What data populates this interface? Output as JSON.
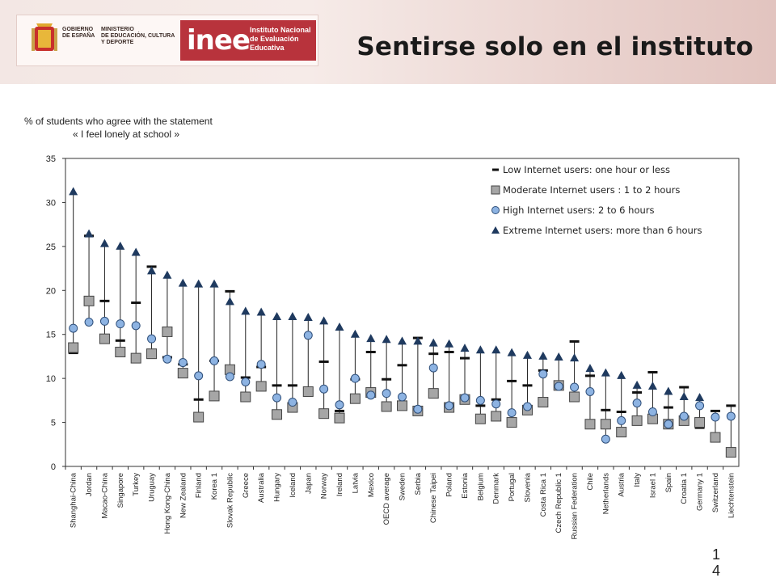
{
  "header": {
    "logo_text": "GOBIERNO DE ESPAÑA | MINISTERIO DE EDUCACIÓN, CULTURA Y DEPORTE | inee Instituto Nacional de Evaluación Educativa",
    "title": "Sentirse solo en el instituto"
  },
  "page_number": "14",
  "colors": {
    "low": "#111111",
    "moderate": "#a6a6a6",
    "high": "#8db3e2",
    "extreme": "#1f3a5f",
    "brand_red": "#b8333c"
  },
  "chart_data": {
    "type": "scatter",
    "subtitle_line1": "% of students who agree with the statement",
    "subtitle_line2": "« I feel lonely at school »",
    "ylim": [
      0,
      35
    ],
    "yticks": [
      0,
      5,
      10,
      15,
      20,
      25,
      30,
      35
    ],
    "grid": false,
    "legend_position": "top-right",
    "categories": [
      "Shanghai-China",
      "Jordan",
      "Macao-China",
      "Singapore",
      "Turkey",
      "Uruguay",
      "Hong Kong-China",
      "New Zealand",
      "Finland",
      "Korea 1",
      "Slovak Republic",
      "Greece",
      "Australia",
      "Hungary",
      "Iceland",
      "Japan",
      "Norway",
      "Ireland",
      "Latvia",
      "Mexico",
      "OECD average",
      "Sweden",
      "Serbia",
      "Chinese Taipei",
      "Poland",
      "Estonia",
      "Belgium",
      "Denmark",
      "Portugal",
      "Slovenia",
      "Costa Rica 1",
      "Czech Republic 1",
      "Russian Federation",
      "Chile",
      "Netherlands",
      "Austria",
      "Italy",
      "Israel 1",
      "Spain",
      "Croatia 1",
      "Germany 1",
      "Switzerland",
      "Liechtenstein"
    ],
    "series": [
      {
        "name": "Low Internet users: one hour or less",
        "marker": "dash",
        "values": [
          12.9,
          26.2,
          18.8,
          14.3,
          18.6,
          22.7,
          12.4,
          11.6,
          7.6,
          12.0,
          19.9,
          10.1,
          11.3,
          9.2,
          9.2,
          8.4,
          11.9,
          6.3,
          9.9,
          13.0,
          9.9,
          11.5,
          14.6,
          12.8,
          13.0,
          12.3,
          6.9,
          7.6,
          9.7,
          9.2,
          10.9,
          9.4,
          14.2,
          10.3,
          6.4,
          6.2,
          8.4,
          10.7,
          6.7,
          9.0,
          4.4,
          6.3,
          6.9
        ]
      },
      {
        "name": "Moderate Internet users : 1 to 2 hours",
        "marker": "square",
        "values": [
          13.5,
          18.8,
          14.5,
          13.0,
          12.3,
          12.8,
          15.3,
          10.6,
          5.6,
          8.0,
          11.0,
          7.9,
          9.1,
          5.9,
          6.7,
          8.5,
          6.0,
          5.5,
          7.7,
          8.4,
          6.8,
          6.9,
          6.3,
          8.3,
          6.7,
          7.6,
          5.4,
          5.7,
          5.0,
          6.4,
          7.3,
          9.2,
          7.9,
          4.8,
          4.8,
          3.9,
          5.2,
          5.4,
          4.8,
          5.2,
          5.0,
          3.3,
          1.6
        ]
      },
      {
        "name": "High Internet users: 2 to 6 hours",
        "marker": "circle",
        "values": [
          15.7,
          16.4,
          16.5,
          16.2,
          16.0,
          14.5,
          12.2,
          11.8,
          10.3,
          12.0,
          10.2,
          9.6,
          11.6,
          7.8,
          7.3,
          14.9,
          8.8,
          7.0,
          10.0,
          8.1,
          8.3,
          7.9,
          6.5,
          11.2,
          6.9,
          7.8,
          7.5,
          7.1,
          6.1,
          6.8,
          10.5,
          9.1,
          9.0,
          8.5,
          3.1,
          5.2,
          7.2,
          6.2,
          4.8,
          5.7,
          6.9,
          5.6,
          5.7
        ]
      },
      {
        "name": "Extreme Internet users: more than 6 hours",
        "marker": "triangle",
        "values": [
          31.2,
          26.4,
          25.3,
          25.0,
          24.3,
          22.2,
          21.7,
          20.8,
          20.7,
          20.7,
          18.7,
          17.6,
          17.5,
          17.0,
          17.0,
          16.9,
          16.5,
          15.8,
          15.0,
          14.5,
          14.4,
          14.2,
          14.2,
          14.0,
          13.9,
          13.4,
          13.2,
          13.2,
          12.9,
          12.6,
          12.5,
          12.4,
          12.3,
          11.1,
          10.6,
          10.3,
          9.2,
          9.1,
          8.5,
          7.9,
          7.8,
          null,
          null
        ]
      }
    ]
  }
}
